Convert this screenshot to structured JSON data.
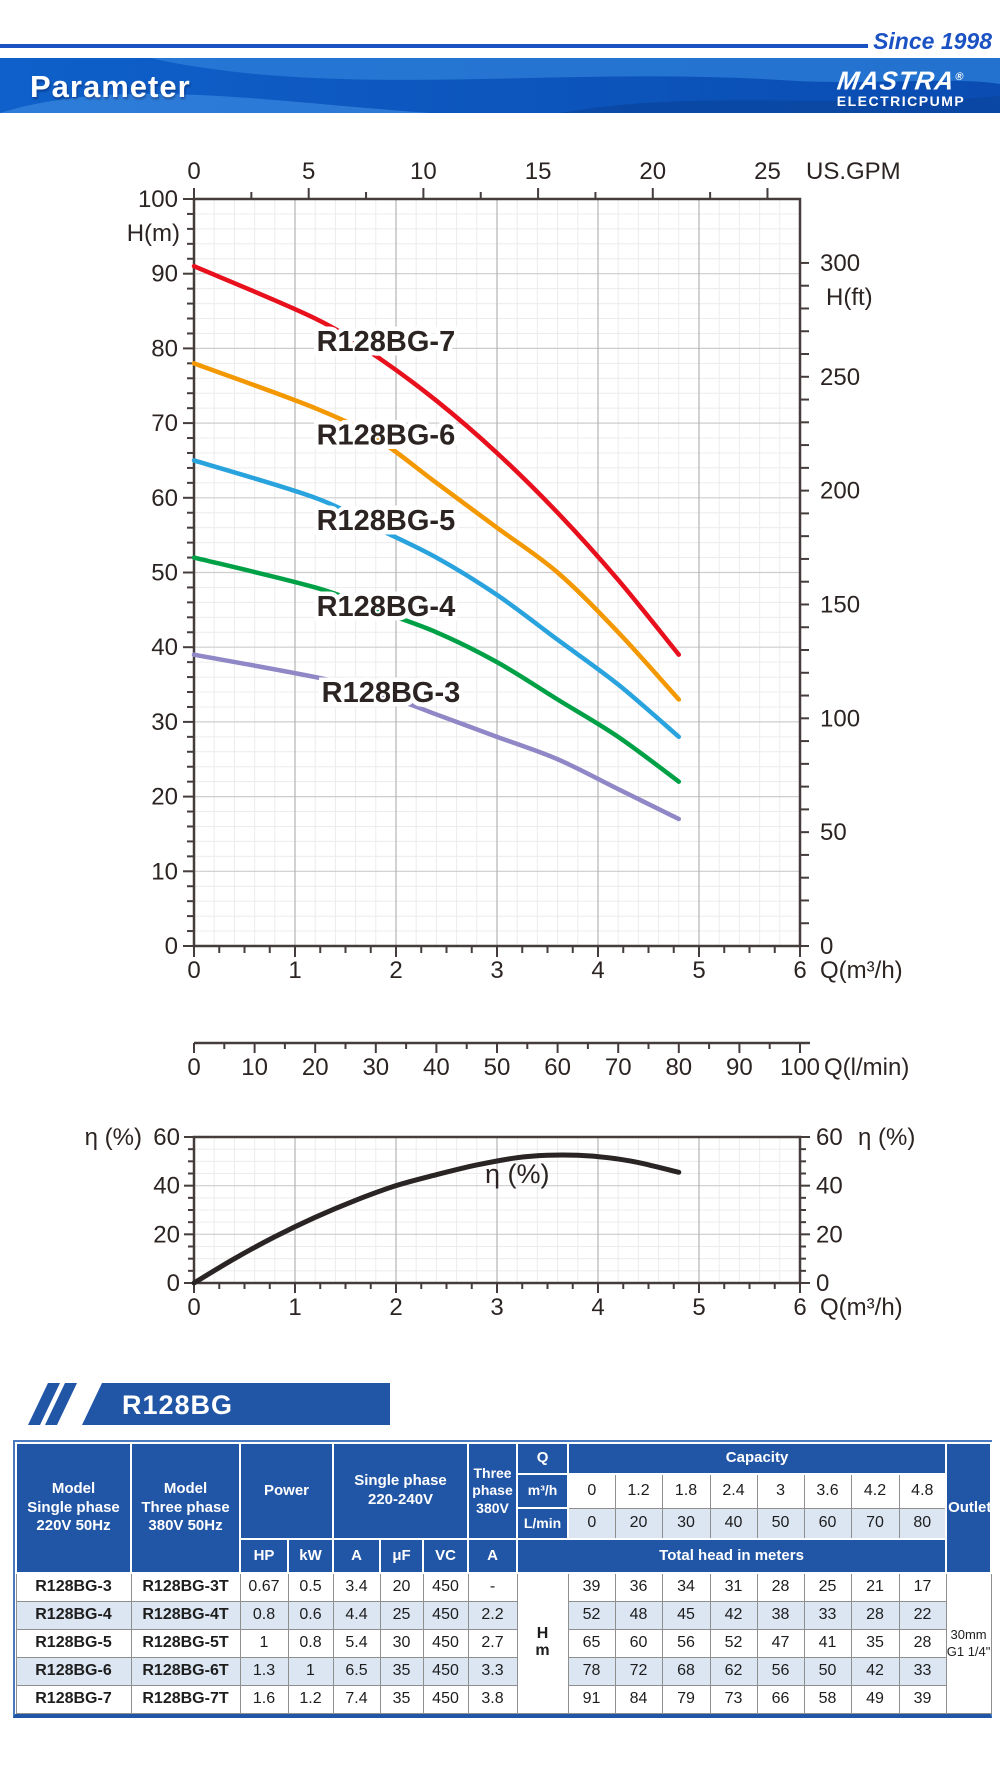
{
  "header": {
    "since": "Since 1998",
    "title": "Parameter",
    "brand": "MASTRA",
    "brand_reg": "®",
    "brand_sub": "ELECTRICPUMP"
  },
  "colors": {
    "accent_blue": "#2155a5",
    "rule_blue": "#1a52c4",
    "row_light_blue": "#dce6f3"
  },
  "series_banner": {
    "label": "R128BG"
  },
  "chart_data": [
    {
      "type": "line",
      "title": "Head / flow performance curves",
      "x_label_bottom": "Q(m³/h)",
      "x_label_top": "US.GPM",
      "y_label_left": "H(m)",
      "y_label_right": "H(ft)",
      "xlim": [
        0,
        6
      ],
      "ylim": [
        0,
        100
      ],
      "x": [
        0,
        1.2,
        1.8,
        2.4,
        3,
        3.6,
        4.2,
        4.8
      ],
      "series": [
        {
          "name": "R128BG-7",
          "color": "#e8101c",
          "values": [
            91,
            84,
            79,
            73,
            66,
            58,
            49,
            39
          ],
          "label_pos": {
            "q": 1.9,
            "h": 81
          }
        },
        {
          "name": "R128BG-6",
          "color": "#f39800",
          "values": [
            78,
            72,
            68,
            62,
            56,
            50,
            42,
            33
          ],
          "label_pos": {
            "q": 1.9,
            "h": 68.5
          }
        },
        {
          "name": "R128BG-5",
          "color": "#29a3dd",
          "values": [
            65,
            60,
            56,
            52,
            47,
            41,
            35,
            28
          ],
          "label_pos": {
            "q": 1.9,
            "h": 57
          }
        },
        {
          "name": "R128BG-4",
          "color": "#00a146",
          "values": [
            52,
            48,
            45,
            42,
            38,
            33,
            28,
            22
          ],
          "label_pos": {
            "q": 1.9,
            "h": 45.5
          }
        },
        {
          "name": "R128BG-3",
          "color": "#8f87c6",
          "values": [
            39,
            36,
            34,
            31,
            28,
            25,
            21,
            17
          ],
          "label_pos": {
            "q": 1.95,
            "h": 34
          }
        }
      ],
      "axes": {
        "left_ticks": [
          0,
          10,
          20,
          30,
          40,
          50,
          60,
          70,
          80,
          90,
          100
        ],
        "right_ticks": [
          0,
          50,
          100,
          150,
          200,
          250,
          300
        ],
        "top_ticks": [
          0,
          5,
          10,
          15,
          20,
          25
        ],
        "bottom_ticks": [
          0,
          1,
          2,
          3,
          4,
          5,
          6
        ]
      },
      "secondary_x": {
        "label": "Q(l/min)",
        "ticks": [
          0,
          10,
          20,
          30,
          40,
          50,
          60,
          70,
          80,
          90,
          100
        ]
      }
    },
    {
      "type": "line",
      "title": "Efficiency curve",
      "x_label": "Q(m³/h)",
      "y_label": "η (%)",
      "xlim": [
        0,
        6
      ],
      "ylim": [
        0,
        60
      ],
      "x": [
        0,
        0.4,
        0.8,
        1.2,
        1.6,
        2.0,
        2.4,
        2.8,
        3.2,
        3.5,
        3.8,
        4.1,
        4.4,
        4.8
      ],
      "values": [
        0,
        10,
        19,
        27,
        34,
        40,
        44.5,
        48.5,
        51.5,
        52.5,
        52.5,
        51.5,
        49.5,
        45.5
      ],
      "color": "#2a2424",
      "curve_label": {
        "text": "η (%)",
        "q": 3.2,
        "v": 41
      },
      "axes": {
        "left_ticks": [
          0,
          20,
          40,
          60
        ],
        "right_ticks": [
          0,
          20,
          40,
          60
        ],
        "bottom_ticks": [
          0,
          1,
          2,
          3,
          4,
          5,
          6
        ]
      }
    }
  ],
  "table": {
    "header": {
      "model_single": "Model\nSingle phase\n220V 50Hz",
      "model_three": "Model\nThree phase\n380V 50Hz",
      "power": "Power",
      "single_phase": "Single phase\n220-240V",
      "three_phase": "Three\nphase\n380V",
      "q_label": "Q",
      "capacity": "Capacity",
      "m3h_label": "m³/h",
      "lmin_label": "L/min",
      "m3h_values": [
        "0",
        "1.2",
        "1.8",
        "2.4",
        "3",
        "3.6",
        "4.2",
        "4.8"
      ],
      "lmin_values": [
        "0",
        "20",
        "30",
        "40",
        "50",
        "60",
        "70",
        "80"
      ],
      "units": [
        "HP",
        "kW",
        "A",
        "μF",
        "VC",
        "A"
      ],
      "total_head": "Total head in meters",
      "outlet": "Outlet",
      "hm_label": "H\nm"
    },
    "rows": [
      {
        "model": "R128BG-3",
        "model_t": "R128BG-3T",
        "hp": "0.67",
        "kw": "0.5",
        "a": "3.4",
        "uf": "20",
        "vc": "450",
        "a3": "-",
        "heads": [
          "39",
          "36",
          "34",
          "31",
          "28",
          "25",
          "21",
          "17"
        ]
      },
      {
        "model": "R128BG-4",
        "model_t": "R128BG-4T",
        "hp": "0.8",
        "kw": "0.6",
        "a": "4.4",
        "uf": "25",
        "vc": "450",
        "a3": "2.2",
        "heads": [
          "52",
          "48",
          "45",
          "42",
          "38",
          "33",
          "28",
          "22"
        ]
      },
      {
        "model": "R128BG-5",
        "model_t": "R128BG-5T",
        "hp": "1",
        "kw": "0.8",
        "a": "5.4",
        "uf": "30",
        "vc": "450",
        "a3": "2.7",
        "heads": [
          "65",
          "60",
          "56",
          "52",
          "47",
          "41",
          "35",
          "28"
        ]
      },
      {
        "model": "R128BG-6",
        "model_t": "R128BG-6T",
        "hp": "1.3",
        "kw": "1",
        "a": "6.5",
        "uf": "35",
        "vc": "450",
        "a3": "3.3",
        "heads": [
          "78",
          "72",
          "68",
          "62",
          "56",
          "50",
          "42",
          "33"
        ]
      },
      {
        "model": "R128BG-7",
        "model_t": "R128BG-7T",
        "hp": "1.6",
        "kw": "1.2",
        "a": "7.4",
        "uf": "35",
        "vc": "450",
        "a3": "3.8",
        "heads": [
          "91",
          "84",
          "79",
          "73",
          "66",
          "58",
          "49",
          "39"
        ]
      }
    ],
    "outlet_value": "30mm\nG1 1/4\""
  }
}
